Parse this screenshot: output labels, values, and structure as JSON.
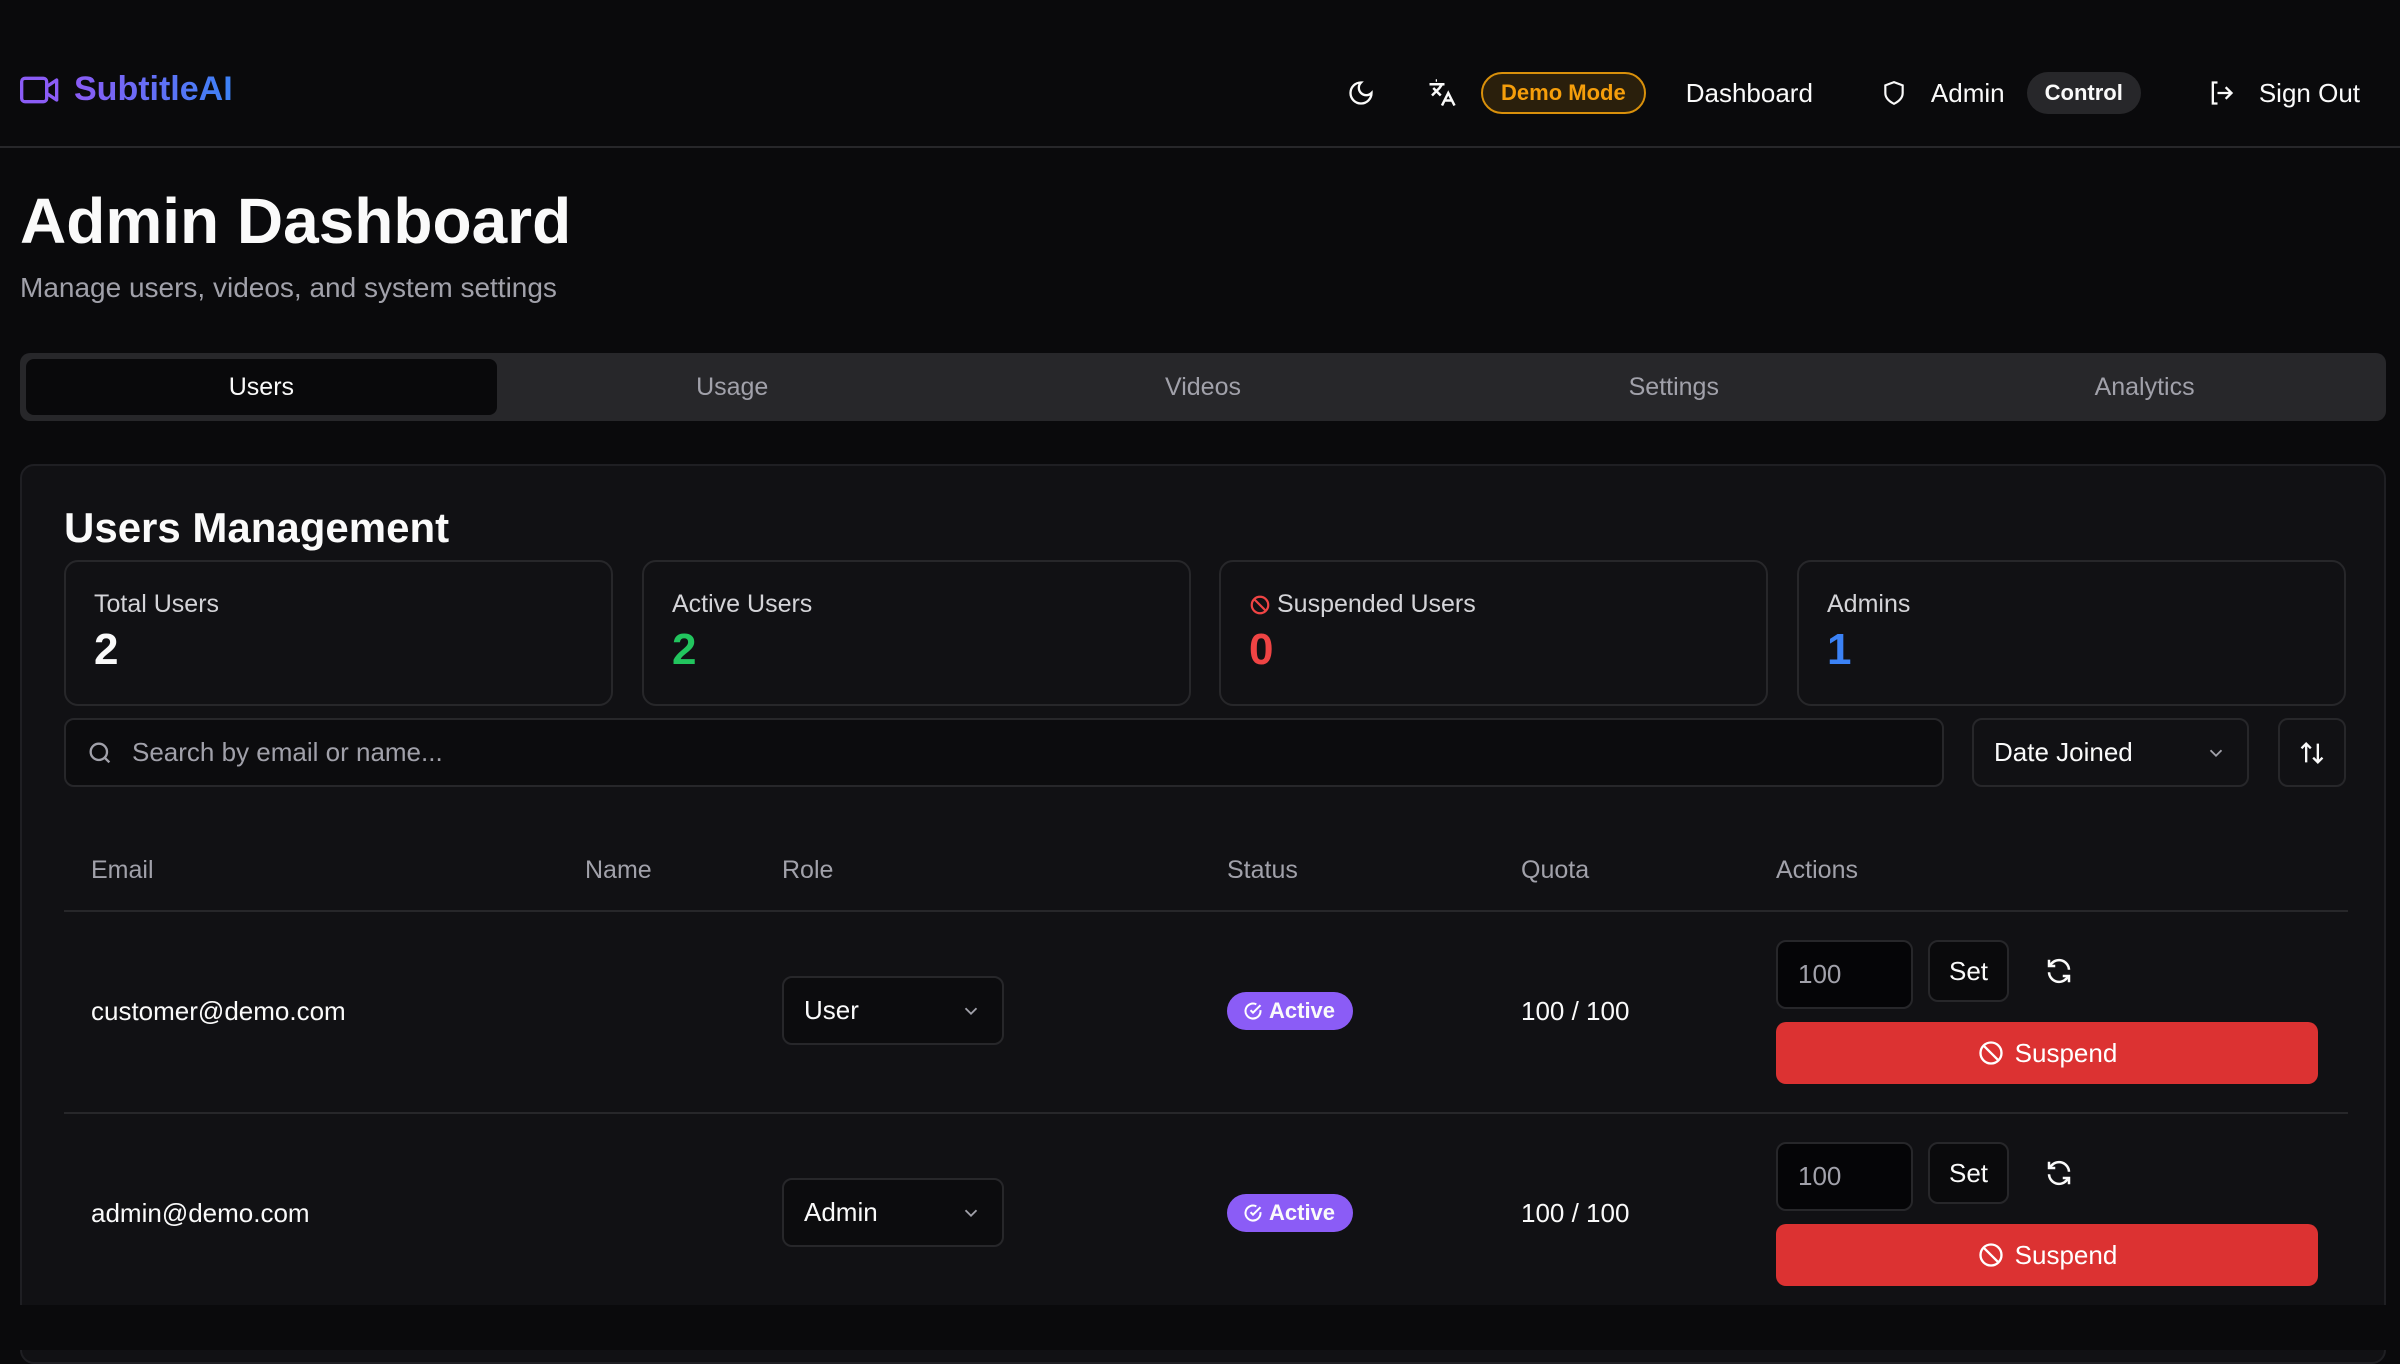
{
  "app": {
    "name": "SubtitleAI",
    "logo_icon": "video-camera-icon"
  },
  "nav": {
    "theme_icon": "moon-icon",
    "language_icon": "translate-icon",
    "demo_badge": "Demo Mode",
    "dashboard": "Dashboard",
    "admin": "Admin",
    "control": "Control",
    "sign_out": "Sign Out"
  },
  "page": {
    "title": "Admin Dashboard",
    "subtitle": "Manage users, videos, and system settings"
  },
  "tabs": [
    {
      "label": "Users",
      "active": true
    },
    {
      "label": "Usage"
    },
    {
      "label": "Videos"
    },
    {
      "label": "Settings"
    },
    {
      "label": "Analytics"
    }
  ],
  "users": {
    "title": "Users Management",
    "stats": [
      {
        "label": "Total Users",
        "value": "2",
        "color": "#fafafa"
      },
      {
        "label": "Active Users",
        "value": "2",
        "color": "#22c55e"
      },
      {
        "label": "Suspended Users",
        "value": "0",
        "color": "#ef4444"
      },
      {
        "label": "Admins",
        "value": "1",
        "color": "#3b82f6"
      }
    ],
    "search_placeholder": "Search by email or name...",
    "sort_by": "Date Joined",
    "columns": [
      "Email",
      "Name",
      "Role",
      "Status",
      "Quota",
      "Actions"
    ],
    "rows": [
      {
        "email": "customer@demo.com",
        "name": "",
        "role": "User",
        "status": "Active",
        "quota": "100 / 100",
        "quota_input": "100",
        "set": "Set",
        "suspend": "Suspend"
      },
      {
        "email": "admin@demo.com",
        "name": "",
        "role": "Admin",
        "status": "Active",
        "quota": "100 / 100",
        "quota_input": "100",
        "set": "Set",
        "suspend": "Suspend"
      }
    ]
  },
  "colors": {
    "accent": "#8b5cf6",
    "danger": "#dc3232",
    "warning": "#f59e0b"
  }
}
